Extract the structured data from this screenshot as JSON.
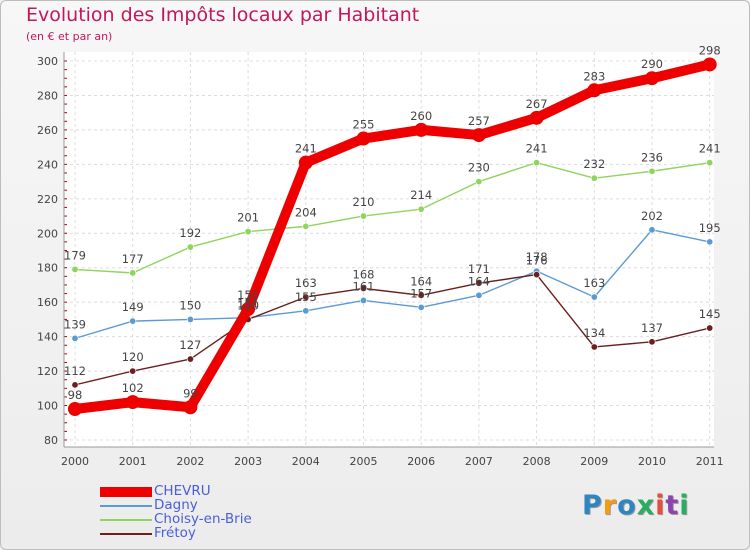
{
  "title": "Evolution des Impôts locaux par Habitant",
  "subtitle": "(en € et par an)",
  "logo": {
    "text": "Proxiti",
    "colors": [
      "#2e86c1",
      "#f39c12",
      "#2e86c1",
      "#27ae60",
      "#e74c3c",
      "#8e44ad",
      "#27ae60"
    ]
  },
  "chart_data": {
    "type": "line",
    "title": "Evolution des Impôts locaux par Habitant",
    "subtitle": "(en € et par an)",
    "xlabel": "",
    "ylabel": "",
    "x": [
      "2000",
      "2001",
      "2002",
      "2003",
      "2004",
      "2005",
      "2006",
      "2007",
      "2008",
      "2009",
      "2010",
      "2011"
    ],
    "ylim": [
      80,
      300
    ],
    "yticks": [
      "80",
      "100",
      "120",
      "140",
      "160",
      "180",
      "200",
      "220",
      "240",
      "260",
      "280",
      "300"
    ],
    "grid": true,
    "legend_position": "bottom-left",
    "series": [
      {
        "name": "CHEVRU",
        "color": "#ee0000",
        "values": [
          98,
          102,
          99,
          156,
          241,
          255,
          260,
          257,
          267,
          283,
          290,
          298
        ],
        "labels": [
          "98",
          "102",
          "99",
          "156",
          "241",
          "255",
          "260",
          "257",
          "267",
          "283",
          "290",
          "298"
        ]
      },
      {
        "name": "Dagny",
        "color": "#5b9bd5",
        "values": [
          139,
          149,
          150,
          151,
          155,
          161,
          157,
          164,
          178,
          163,
          202,
          195
        ],
        "labels": [
          "139",
          "149",
          "150",
          "151",
          "155",
          "161",
          "157",
          "164",
          "178",
          "163",
          "202",
          "195"
        ]
      },
      {
        "name": "Choisy-en-Brie",
        "color": "#8fd45c",
        "values": [
          179,
          177,
          192,
          201,
          204,
          210,
          214,
          230,
          241,
          232,
          236,
          241
        ],
        "labels": [
          "179",
          "177",
          "192",
          "201",
          "204",
          "210",
          "214",
          "230",
          "241",
          "232",
          "236",
          "241"
        ]
      },
      {
        "name": "Frétoy",
        "color": "#6b1f1f",
        "values": [
          112,
          120,
          127,
          150,
          163,
          168,
          164,
          171,
          176,
          134,
          137,
          145
        ],
        "labels": [
          "112",
          "120",
          "127",
          "150",
          "163",
          "168",
          "164",
          "171",
          "176",
          "134",
          "137",
          "145"
        ]
      }
    ]
  }
}
